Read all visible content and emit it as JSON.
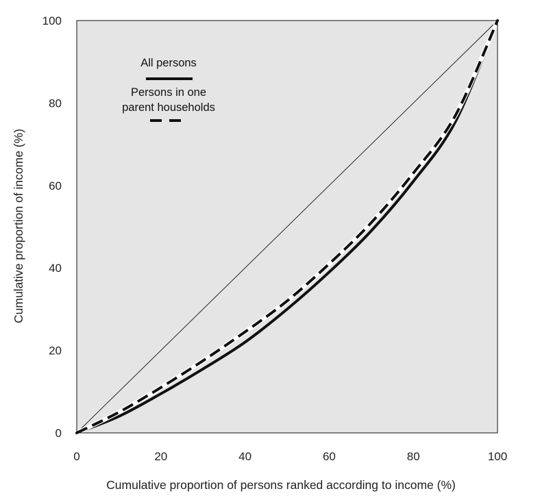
{
  "chart_data": {
    "type": "line",
    "xlabel": "Cumulative proportion of persons ranked according to income (%)",
    "ylabel": "Cumulative proportion of income (%)",
    "xlim": [
      0,
      100
    ],
    "ylim": [
      0,
      100
    ],
    "xticks": [
      "0",
      "20",
      "40",
      "60",
      "80",
      "100"
    ],
    "yticks": [
      "0",
      "20",
      "40",
      "60",
      "80",
      "100"
    ],
    "grid": false,
    "legend_position": "top-left",
    "plot_background": "#e5e5e5",
    "line_color": "#111111",
    "reference_line": {
      "name": "Line of equality",
      "x": [
        0,
        100
      ],
      "y": [
        0,
        100
      ]
    },
    "series": [
      {
        "name": "All persons",
        "style": "solid",
        "x": [
          0,
          10,
          20,
          30,
          40,
          50,
          60,
          70,
          80,
          90,
          100
        ],
        "y": [
          0,
          4,
          9.5,
          15.5,
          22,
          30,
          39,
          49,
          61,
          75.5,
          100
        ]
      },
      {
        "name": "Persons in one parent households",
        "style": "dashed",
        "x": [
          0,
          10,
          20,
          30,
          40,
          50,
          60,
          70,
          80,
          90,
          100
        ],
        "y": [
          0,
          5,
          11,
          17.5,
          24.5,
          32,
          41,
          51,
          63,
          77,
          100
        ]
      }
    ],
    "legend": [
      {
        "label_lines": [
          "All persons"
        ],
        "style": "solid"
      },
      {
        "label_lines": [
          "Persons in one",
          "parent households"
        ],
        "style": "dashed"
      }
    ]
  }
}
